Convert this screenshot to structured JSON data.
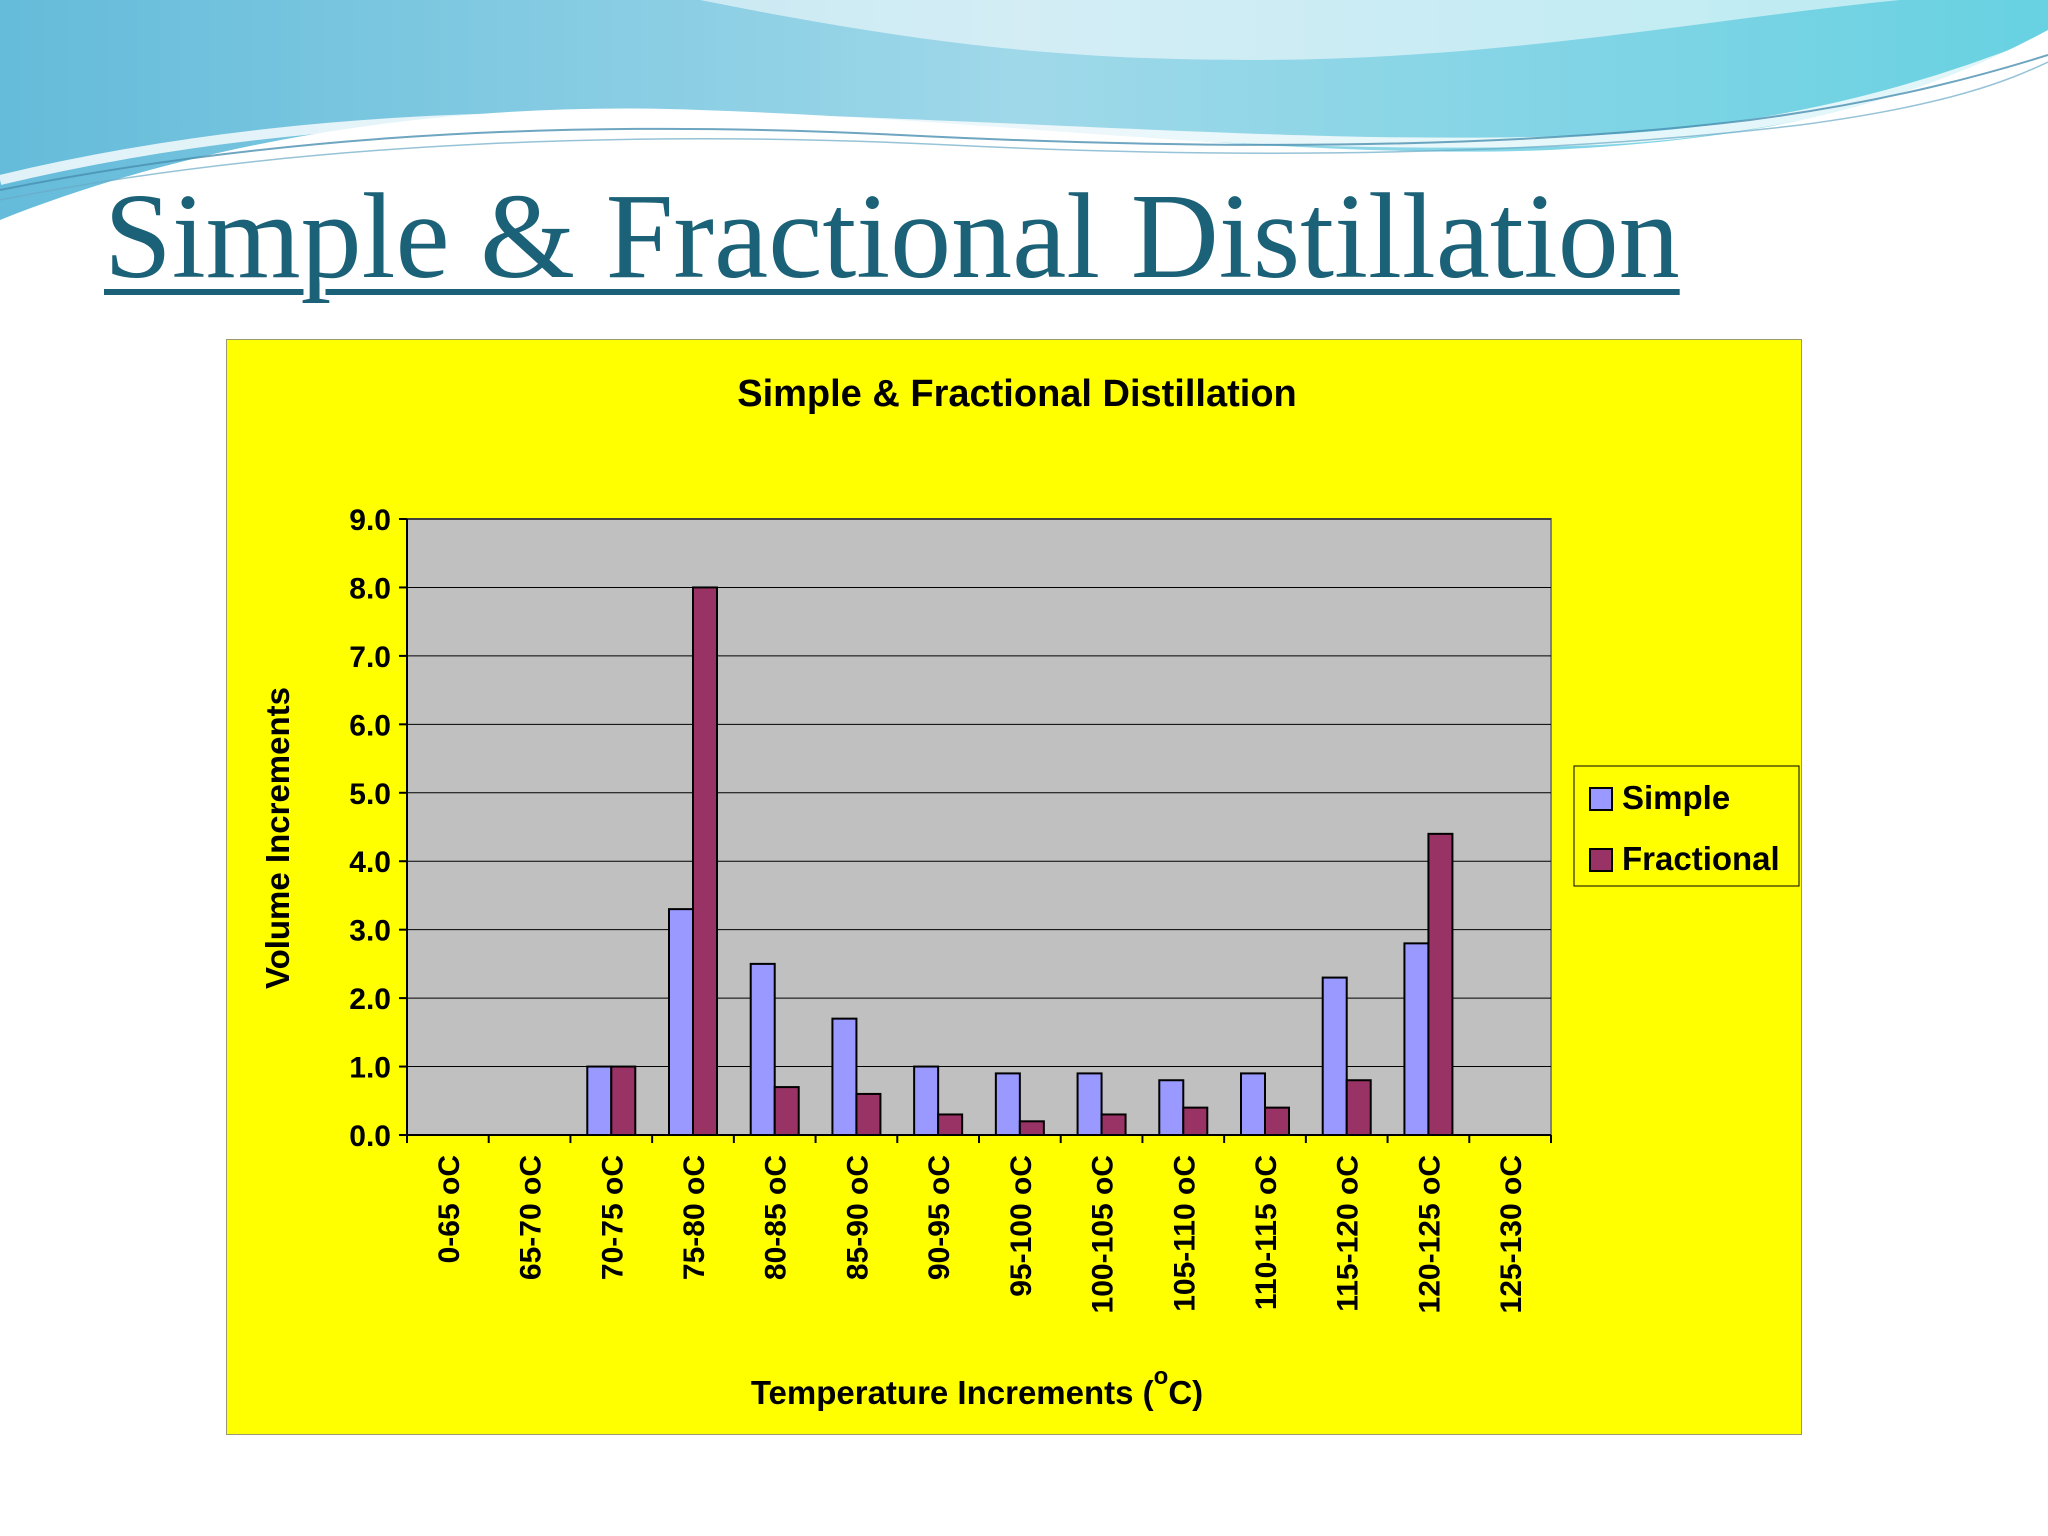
{
  "slide": {
    "title": "Simple & Fractional Distillation",
    "colors": {
      "title": "#1b6177",
      "chart_background": "#ffff00",
      "plot_background": "#c0c0c0"
    }
  },
  "chart_data": {
    "type": "bar",
    "title": "Simple & Fractional Distillation",
    "xlabel": "Temperature Increments (oC)",
    "xlabel_main": "Temperature Increments (",
    "xlabel_sup": "o",
    "xlabel_tail": "C)",
    "ylabel": "Volume Increments",
    "ylim": [
      0,
      9
    ],
    "yticks": [
      "0.0",
      "1.0",
      "2.0",
      "3.0",
      "4.0",
      "5.0",
      "6.0",
      "7.0",
      "8.0",
      "9.0"
    ],
    "grid": true,
    "legend_position": "right",
    "categories": [
      "0-65 oC",
      "65-70 oC",
      "70-75 oC",
      "75-80 oC",
      "80-85 oC",
      "85-90 oC",
      "90-95 oC",
      "95-100 oC",
      "100-105 oC",
      "105-110 oC",
      "110-115 oC",
      "115-120 oC",
      "120-125 oC",
      "125-130 oC"
    ],
    "series": [
      {
        "name": "Simple",
        "color": "#9999ff",
        "values": [
          0,
          0,
          1.0,
          3.3,
          2.5,
          1.7,
          1.0,
          0.9,
          0.9,
          0.8,
          0.9,
          2.3,
          2.8,
          0
        ]
      },
      {
        "name": "Fractional",
        "color": "#993366",
        "values": [
          0,
          0,
          1.0,
          8.0,
          0.7,
          0.6,
          0.3,
          0.2,
          0.3,
          0.4,
          0.4,
          0.8,
          4.4,
          0
        ]
      }
    ]
  }
}
